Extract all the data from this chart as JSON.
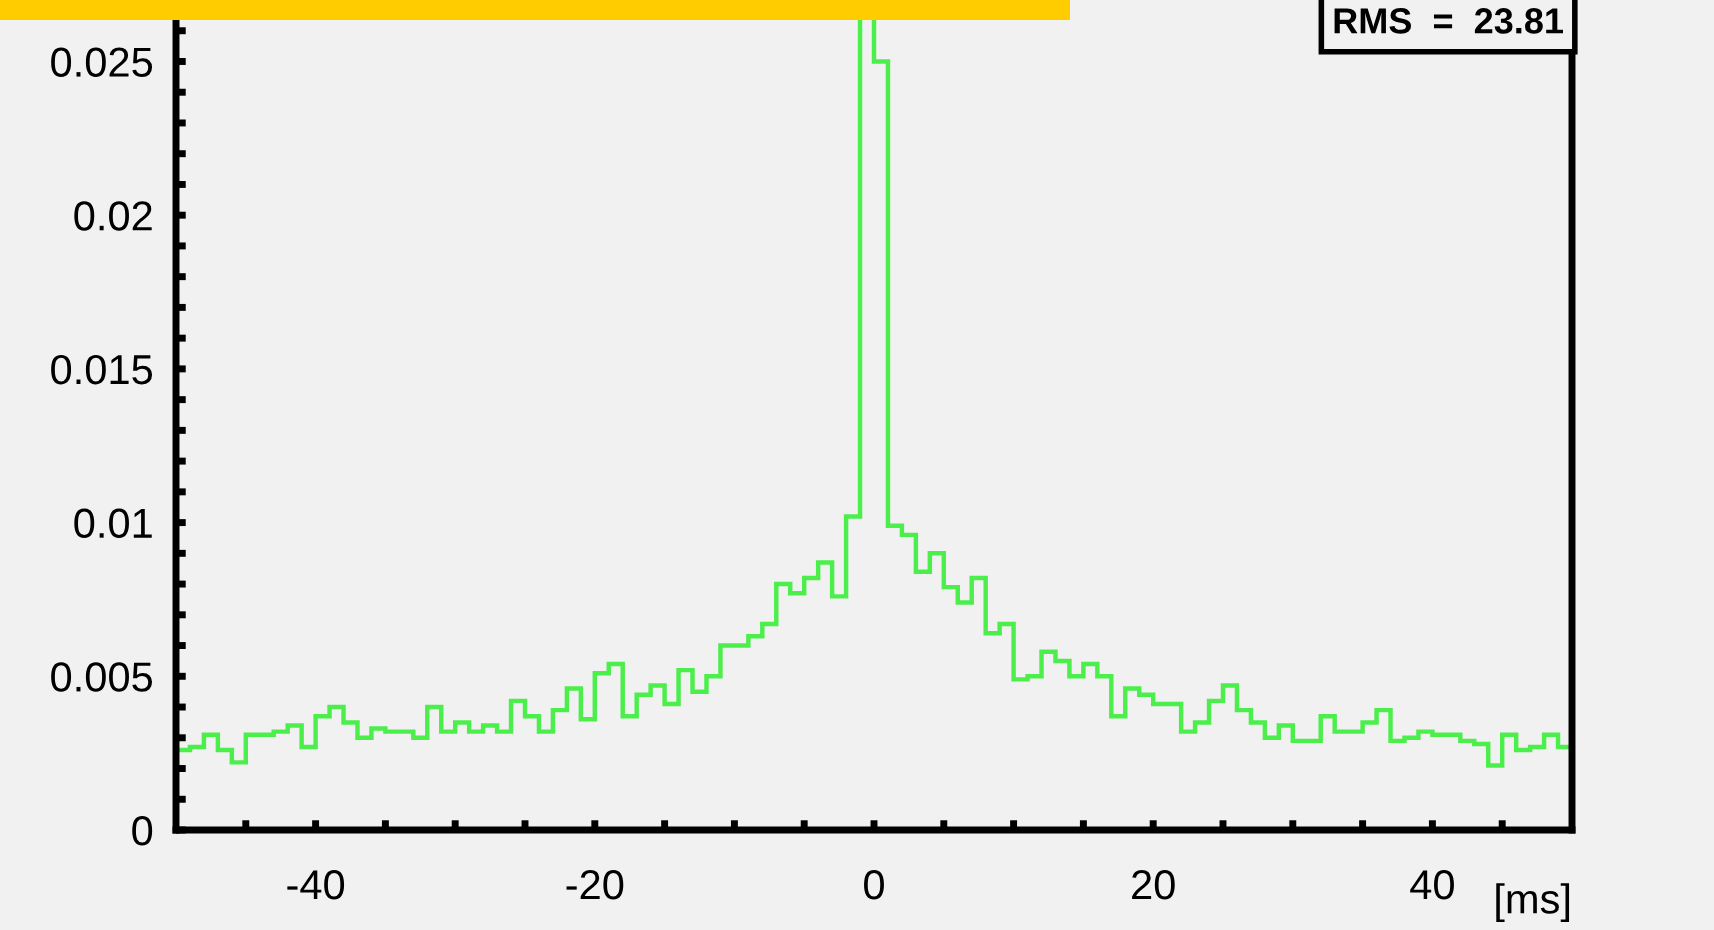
{
  "chart_data": {
    "type": "histogram",
    "xlabel": "[ms]",
    "annotations": [
      "RMS  =  23.81"
    ],
    "color": "#4cee4c",
    "bins": [
      -50,
      -49,
      -48,
      -47,
      -46,
      -45,
      -44,
      -43,
      -42,
      -41,
      -40,
      -39,
      -38,
      -37,
      -36,
      -35,
      -34,
      -33,
      -32,
      -31,
      -30,
      -29,
      -28,
      -27,
      -26,
      -25,
      -24,
      -23,
      -22,
      -21,
      -20,
      -19,
      -18,
      -17,
      -16,
      -15,
      -14,
      -13,
      -12,
      -11,
      -10,
      -9,
      -8,
      -7,
      -6,
      -5,
      -4,
      -3,
      -2,
      -1,
      0,
      1,
      2,
      3,
      4,
      5,
      6,
      7,
      8,
      9,
      10,
      11,
      12,
      13,
      14,
      15,
      16,
      17,
      18,
      19,
      20,
      21,
      22,
      23,
      24,
      25,
      26,
      27,
      28,
      29,
      30,
      31,
      32,
      33,
      34,
      35,
      36,
      37,
      38,
      39,
      40,
      41,
      42,
      43,
      44,
      45,
      46,
      47,
      48,
      49,
      50
    ],
    "values": [
      0.0026,
      0.0027,
      0.0031,
      0.0026,
      0.0022,
      0.0031,
      0.0031,
      0.0032,
      0.0034,
      0.0027,
      0.0037,
      0.004,
      0.0035,
      0.003,
      0.0033,
      0.0032,
      0.0032,
      0.003,
      0.004,
      0.0032,
      0.0035,
      0.0032,
      0.0034,
      0.0032,
      0.0042,
      0.0037,
      0.0032,
      0.0039,
      0.0046,
      0.0036,
      0.0051,
      0.0054,
      0.0037,
      0.0044,
      0.0047,
      0.0041,
      0.0052,
      0.0045,
      0.005,
      0.006,
      0.006,
      0.0063,
      0.0067,
      0.008,
      0.0077,
      0.0082,
      0.0087,
      0.0076,
      0.0102,
      0.027,
      0.025,
      0.0099,
      0.0096,
      0.0084,
      0.009,
      0.0079,
      0.0074,
      0.0082,
      0.0064,
      0.0067,
      0.0049,
      0.005,
      0.0058,
      0.0055,
      0.005,
      0.0054,
      0.005,
      0.0037,
      0.0046,
      0.0044,
      0.0041,
      0.0041,
      0.0032,
      0.0035,
      0.0042,
      0.0047,
      0.0039,
      0.0035,
      0.003,
      0.0034,
      0.0029,
      0.0029,
      0.0037,
      0.0032,
      0.0032,
      0.0035,
      0.0039,
      0.0029,
      0.003,
      0.0032,
      0.0031,
      0.0031,
      0.0029,
      0.0028,
      0.0021,
      0.0031,
      0.0026,
      0.0027,
      0.0031,
      0.0027
    ],
    "xlim": [
      -50,
      50
    ],
    "xticks": [
      {
        "value": -45,
        "label": null
      },
      -40,
      {
        "value": -35,
        "label": null
      },
      {
        "value": -30,
        "label": null
      },
      {
        "value": -25,
        "label": null
      },
      -20,
      {
        "value": -15,
        "label": null
      },
      {
        "value": -10,
        "label": null
      },
      {
        "value": -5,
        "label": null
      },
      0,
      {
        "value": 5,
        "label": null
      },
      {
        "value": 10,
        "label": null
      },
      {
        "value": 15,
        "label": null
      },
      20,
      {
        "value": 25,
        "label": null
      },
      {
        "value": 30,
        "label": null
      },
      {
        "value": 35,
        "label": null
      },
      40,
      {
        "value": 45,
        "label": null
      }
    ],
    "ylim": [
      0,
      0.027
    ],
    "yticks": [
      0,
      {
        "value": 0.001,
        "label": null
      },
      {
        "value": 0.002,
        "label": null
      },
      {
        "value": 0.003,
        "label": null
      },
      {
        "value": 0.004,
        "label": null
      },
      0.005,
      {
        "value": 0.006,
        "label": null
      },
      {
        "value": 0.007,
        "label": null
      },
      {
        "value": 0.008,
        "label": null
      },
      {
        "value": 0.009,
        "label": null
      },
      0.01,
      {
        "value": 0.011,
        "label": null
      },
      {
        "value": 0.012,
        "label": null
      },
      {
        "value": 0.013,
        "label": null
      },
      {
        "value": 0.014,
        "label": null
      },
      0.015,
      {
        "value": 0.016,
        "label": null
      },
      {
        "value": 0.017,
        "label": null
      },
      {
        "value": 0.018,
        "label": null
      },
      {
        "value": 0.019,
        "label": null
      },
      0.02,
      {
        "value": 0.021,
        "label": null
      },
      {
        "value": 0.022,
        "label": null
      },
      {
        "value": 0.023,
        "label": null
      },
      {
        "value": 0.024,
        "label": null
      },
      0.025,
      {
        "value": 0.026,
        "label": null
      }
    ]
  }
}
